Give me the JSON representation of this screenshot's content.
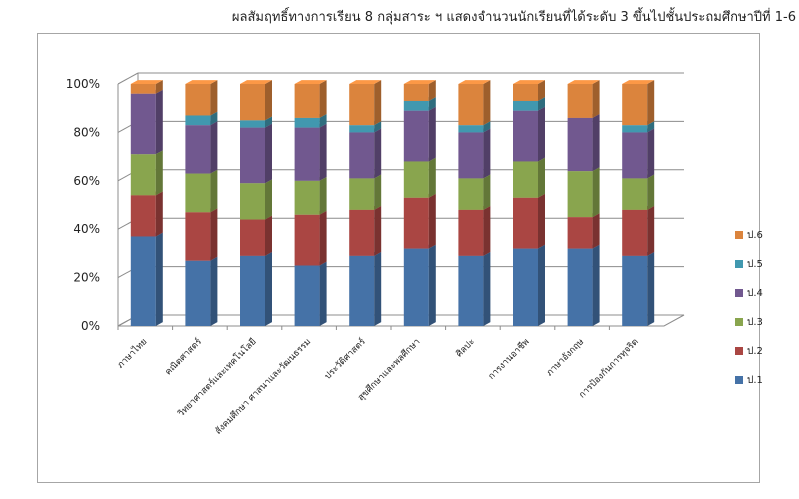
{
  "chart_data": {
    "type": "bar",
    "stacked": "percent",
    "three_d": true,
    "title": "ผลสัมฤทธิ์ทางการเรียน 8 กลุ่มสาระ ฯ แสดงจำนวนนักเรียนที่ได้ระดับ  3 ขึ้นไปชั้นประถมศึกษาปีที่ 1-6",
    "categories": [
      "ภาษาไทย",
      "คณิตศาสตร์",
      "วิทยาศาสตร์และเทคโนโลยี",
      "สังคมศึกษา ศาสนาและวัฒนธรรม",
      "ประวัติศาสตร์",
      "สุขศึกษาและพลศึกษา",
      "ศิลปะ",
      "การงานอาชีพ",
      "ภาษาอังกฤษ",
      "การป้องกันการทุจริต"
    ],
    "series": [
      {
        "name": "ป.1",
        "color": "#4572a7",
        "values": [
          37,
          27,
          29,
          25,
          29,
          32,
          29,
          32,
          32,
          29
        ]
      },
      {
        "name": "ป.2",
        "color": "#aa4643",
        "values": [
          17,
          20,
          15,
          21,
          19,
          21,
          19,
          21,
          13,
          19
        ]
      },
      {
        "name": "ป.3",
        "color": "#89a54e",
        "values": [
          17,
          16,
          15,
          14,
          13,
          15,
          13,
          15,
          19,
          13
        ]
      },
      {
        "name": "ป.4",
        "color": "#71588f",
        "values": [
          25,
          20,
          23,
          22,
          19,
          21,
          19,
          21,
          22,
          19
        ]
      },
      {
        "name": "ป.5",
        "color": "#4198af",
        "values": [
          0,
          4,
          3,
          4,
          3,
          4,
          3,
          4,
          0,
          3
        ]
      },
      {
        "name": "ป.6",
        "color": "#db843d",
        "values": [
          4,
          13,
          15,
          14,
          17,
          7,
          17,
          7,
          14,
          17
        ]
      }
    ],
    "yticks": [
      "0%",
      "20%",
      "40%",
      "60%",
      "80%",
      "100%"
    ],
    "ylim": [
      0,
      100
    ],
    "grid": true,
    "legend": "right"
  }
}
